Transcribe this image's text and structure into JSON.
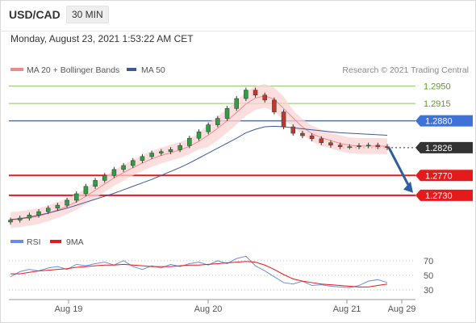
{
  "header": {
    "pair": "USD/CAD",
    "timeframe": "30 MIN"
  },
  "timestamp": "Monday, August 23, 2021 1:53:22 AM CET",
  "legend": {
    "ma20_label": "MA 20 + Bollinger Bands",
    "ma50_label": "MA 50",
    "credit": "Research © 2021 Trading Central",
    "rsi_label": "RSI",
    "ma9_label": "9MA"
  },
  "colors": {
    "ma20": "#f08a8a",
    "band": "#fbd3d3",
    "ma50": "#3c5a9a",
    "resistance_green": "#8cc063",
    "resistance_blue": "#3f72d9",
    "support_red": "#e31b1b",
    "current": "#333333",
    "arrow": "#2f5e9e",
    "candle_up": "#2f9e44",
    "candle_down": "#c0392b",
    "rsi": "#6b8ce0",
    "rsi_ma": "#e31b1b"
  },
  "chart_data": [
    {
      "type": "candlestick",
      "x_ticks": [
        "Aug 19",
        "Aug 20",
        "Aug 21",
        "Aug 29"
      ],
      "ylim": [
        1.2676,
        1.2969
      ],
      "levels": [
        {
          "value": 1.295,
          "label": "1.2950",
          "kind": "resistance"
        },
        {
          "value": 1.2915,
          "label": "1.2915",
          "kind": "resistance"
        },
        {
          "value": 1.288,
          "label": "1.2880",
          "kind": "resistance"
        },
        {
          "value": 1.2826,
          "label": "1.2826",
          "kind": "current"
        },
        {
          "value": 1.277,
          "label": "1.2770",
          "kind": "support"
        },
        {
          "value": 1.273,
          "label": "1.2730",
          "kind": "support"
        }
      ],
      "price": [
        1.268,
        1.2684,
        1.269,
        1.2697,
        1.2704,
        1.271,
        1.272,
        1.2733,
        1.2748,
        1.276,
        1.277,
        1.2782,
        1.279,
        1.28,
        1.2808,
        1.2815,
        1.2818,
        1.2822,
        1.283,
        1.2845,
        1.2858,
        1.2872,
        1.2885,
        1.2905,
        1.2925,
        1.2942,
        1.2932,
        1.2922,
        1.2898,
        1.2868,
        1.2855,
        1.285,
        1.2844,
        1.2836,
        1.2831,
        1.2828,
        1.2828,
        1.283,
        1.2831,
        1.2828,
        1.2826
      ],
      "ma50": [
        1.2681,
        1.2683,
        1.2686,
        1.269,
        1.2694,
        1.2699,
        1.2704,
        1.271,
        1.2716,
        1.2722,
        1.2728,
        1.2734,
        1.2741,
        1.2748,
        1.2755,
        1.2762,
        1.277,
        1.2778,
        1.2786,
        1.2795,
        1.2805,
        1.2815,
        1.2825,
        1.2835,
        1.2845,
        1.2856,
        1.2863,
        1.2868,
        1.2869,
        1.2868,
        1.2866,
        1.2864,
        1.2862,
        1.286,
        1.2858,
        1.2856,
        1.2855,
        1.2854,
        1.2853,
        1.2852,
        1.2851
      ],
      "forecast": {
        "from": 1.2826,
        "to": 1.2735
      }
    },
    {
      "type": "line",
      "name": "RSI",
      "ylim": [
        20,
        82
      ],
      "y_ticks": [
        70,
        50,
        30
      ],
      "rsi": [
        48,
        55,
        58,
        56,
        60,
        62,
        58,
        65,
        63,
        66,
        68,
        64,
        70,
        62,
        58,
        63,
        60,
        65,
        62,
        66,
        68,
        64,
        70,
        66,
        73,
        76,
        63,
        56,
        48,
        40,
        38,
        42,
        36,
        37,
        35,
        34,
        33,
        36,
        42,
        44,
        40
      ],
      "rsi_ma": [
        52,
        52,
        54,
        56,
        57,
        58,
        59,
        61,
        62,
        63,
        64,
        64,
        65,
        64,
        63,
        62,
        62,
        62,
        63,
        64,
        64,
        65,
        66,
        67,
        68,
        69,
        68,
        64,
        58,
        51,
        45,
        42,
        40,
        38,
        37,
        36,
        35,
        34,
        34,
        36,
        38
      ]
    }
  ]
}
